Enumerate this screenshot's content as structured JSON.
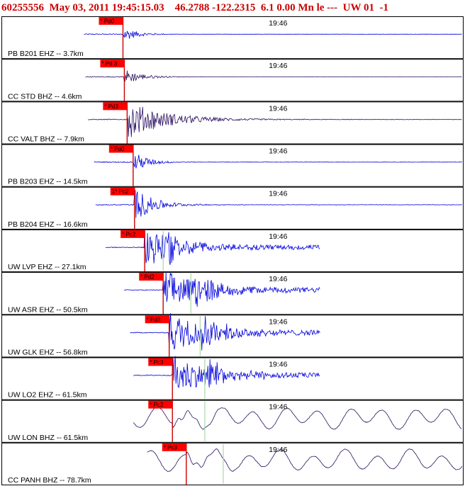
{
  "header": {
    "event_id": "60255556",
    "date": "May 03, 2011",
    "time": "19:45:15.03",
    "lat": "46.2788",
    "lon": "-122.2315",
    "depth": "6.1",
    "mag_info": "0.00 Mn le ---",
    "network": "UW 01",
    "version": "-1"
  },
  "chart_data": {
    "type": "line",
    "title": "60255556 May 03, 2011 19:45:15.03 46.2788 -122.2315 6.1 0.00 Mn le --- UW 01 -1",
    "time_tick_label": "19:46",
    "colors": {
      "border": "#000000",
      "short_period": "#0000dd",
      "broadband": "#2a1060",
      "pick_box": "#ff0000",
      "pick_line": "#cc0000",
      "secondary_marker": "#a8d8a8"
    },
    "traces": [
      {
        "network": "PB",
        "station": "B201",
        "channel": "EHZ",
        "distance": "3.7km",
        "label": "PB B201 EHZ -- 3.7km",
        "pick": "* Pd0",
        "pick_time_s": 26.3,
        "signal": "start",
        "amplitude": 0.35,
        "decay": 3.0,
        "data_gap": null,
        "color": "short_period",
        "secondary_s": null
      },
      {
        "network": "CC",
        "station": "STD",
        "channel": "BHZ",
        "distance": "4.6km",
        "label": "CC STD BHZ -- 4.6km",
        "pick": "* Pd 3",
        "pick_time_s": 26.6,
        "signal": "start",
        "amplitude": 0.4,
        "decay": 3.5,
        "data_gap": null,
        "color": "broadband",
        "secondary_s": null
      },
      {
        "network": "CC",
        "station": "VALT",
        "channel": "BHZ",
        "distance": "7.9km",
        "label": "CC VALT BHZ -- 7.9km",
        "pick": "* Pd3",
        "pick_time_s": 27.2,
        "signal": "start",
        "amplitude": 0.95,
        "decay": 8.0,
        "data_gap": null,
        "color": "broadband",
        "secondary_s": null
      },
      {
        "network": "PB",
        "station": "B203",
        "channel": "EHZ",
        "distance": "14.5km",
        "label": "PB B203 EHZ -- 14.5km",
        "pick": "* Pd0",
        "pick_time_s": 28.5,
        "signal": "start",
        "amplitude": 0.55,
        "decay": 3.0,
        "data_gap": null,
        "color": "short_period",
        "secondary_s": null
      },
      {
        "network": "PB",
        "station": "B204",
        "channel": "EHZ",
        "distance": "16.6km",
        "label": "PB B204 EHZ -- 16.6km",
        "pick": "1* Pc2",
        "pick_time_s": 28.8,
        "signal": "start",
        "amplitude": 0.85,
        "decay": 4.0,
        "data_gap": null,
        "color": "short_period",
        "secondary_s": null
      },
      {
        "network": "UW",
        "station": "LVP",
        "channel": "EHZ",
        "distance": "27.1km",
        "label": "UW LVP EHZ -- 27.1km",
        "pick": "* Pc2",
        "pick_time_s": 31.0,
        "signal": "start",
        "amplitude": 0.95,
        "decay": 6.0,
        "data_gap": [
          69.0,
          106.0
        ],
        "color": "short_period",
        "secondary_s": 35.0
      },
      {
        "network": "UW",
        "station": "ASR",
        "channel": "EHZ",
        "distance": "50.5km",
        "label": "UW ASR EHZ -- 50.5km",
        "pick": "* Pd2",
        "pick_time_s": 35.0,
        "signal": "start",
        "amplitude": 0.95,
        "decay": 7.0,
        "data_gap": [
          69.0,
          106.0
        ],
        "color": "short_period",
        "secondary_s": 41.0
      },
      {
        "network": "UW",
        "station": "GLK",
        "channel": "EHZ",
        "distance": "56.8km",
        "label": "UW GLK EHZ -- 56.8km",
        "pick": "* Pd3",
        "pick_time_s": 36.3,
        "signal": "start",
        "amplitude": 0.95,
        "decay": 7.0,
        "data_gap": [
          69.0,
          106.0
        ],
        "color": "short_period",
        "secondary_s": 43.0
      },
      {
        "network": "UW",
        "station": "LO2",
        "channel": "EHZ",
        "distance": "61.5km",
        "label": "UW LO2 EHZ -- 61.5km",
        "pick": "* Pc3",
        "pick_time_s": 37.0,
        "signal": "start",
        "amplitude": 0.95,
        "decay": 7.0,
        "data_gap": [
          69.0,
          106.0
        ],
        "color": "short_period",
        "secondary_s": 44.0
      },
      {
        "network": "UW",
        "station": "LON",
        "channel": "BHZ",
        "distance": "61.5km",
        "label": "UW LON BHZ -- 61.5km",
        "pick": "* Pc2",
        "pick_time_s": 37.0,
        "signal": "start",
        "amplitude": 0.7,
        "decay": 0.0,
        "data_gap": null,
        "color": "broadband",
        "secondary_s": 44.0
      },
      {
        "network": "CC",
        "station": "PANH",
        "channel": "BHZ",
        "distance": "78.7km",
        "label": "CC PANH BHZ -- 78.7km",
        "pick": "* Pc3",
        "pick_time_s": 40.0,
        "signal": "start",
        "amplitude": 0.7,
        "decay": 0.0,
        "data_gap": null,
        "color": "broadband",
        "secondary_s": 48.0
      }
    ]
  }
}
